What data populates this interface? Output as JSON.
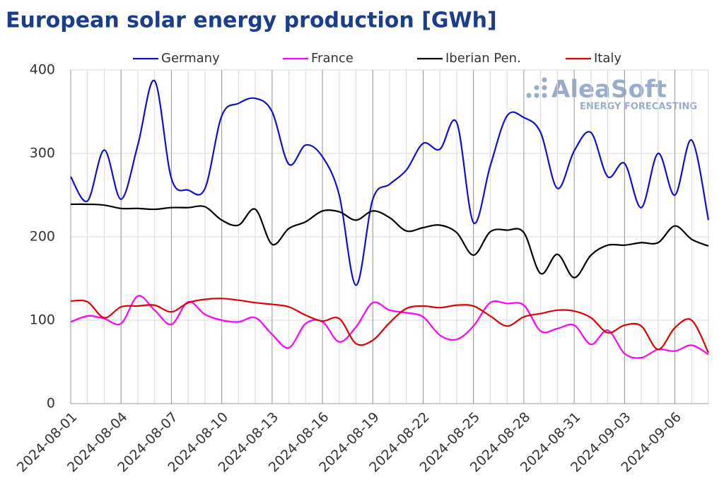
{
  "chart_data": {
    "type": "line",
    "title": "European solar energy production [GWh]",
    "watermark": "AleaSoft",
    "watermark_sub": "ENERGY FORECASTING",
    "x": [
      "2024-08-01",
      "2024-08-02",
      "2024-08-03",
      "2024-08-04",
      "2024-08-05",
      "2024-08-06",
      "2024-08-07",
      "2024-08-08",
      "2024-08-09",
      "2024-08-10",
      "2024-08-11",
      "2024-08-12",
      "2024-08-13",
      "2024-08-14",
      "2024-08-15",
      "2024-08-16",
      "2024-08-17",
      "2024-08-18",
      "2024-08-19",
      "2024-08-20",
      "2024-08-21",
      "2024-08-22",
      "2024-08-23",
      "2024-08-24",
      "2024-08-25",
      "2024-08-26",
      "2024-08-27",
      "2024-08-28",
      "2024-08-29",
      "2024-08-30",
      "2024-08-31",
      "2024-09-01",
      "2024-09-02",
      "2024-09-03",
      "2024-09-04",
      "2024-09-05",
      "2024-09-06",
      "2024-09-07",
      "2024-09-08"
    ],
    "xticks": [
      "2024-08-01",
      "2024-08-04",
      "2024-08-07",
      "2024-08-10",
      "2024-08-13",
      "2024-08-16",
      "2024-08-19",
      "2024-08-22",
      "2024-08-25",
      "2024-08-28",
      "2024-08-31",
      "2024-09-03",
      "2024-09-06"
    ],
    "ylim": [
      0,
      400
    ],
    "yticks": [
      0,
      100,
      200,
      300,
      400
    ],
    "grid": true,
    "legend": "top",
    "smooth": true,
    "series": [
      {
        "name": "Germany",
        "color": "#1010d0",
        "values": [
          272,
          243,
          304,
          245,
          310,
          387,
          270,
          256,
          258,
          345,
          360,
          366,
          350,
          287,
          310,
          296,
          250,
          142,
          245,
          263,
          280,
          312,
          305,
          337,
          217,
          285,
          345,
          343,
          325,
          258,
          303,
          325,
          272,
          288,
          235,
          300,
          250,
          316,
          220
        ]
      },
      {
        "name": "France",
        "color": "#ff00ff",
        "values": [
          98,
          105,
          102,
          96,
          129,
          112,
          95,
          122,
          107,
          100,
          98,
          103,
          83,
          67,
          96,
          98,
          74,
          92,
          121,
          112,
          109,
          104,
          82,
          77,
          93,
          121,
          120,
          118,
          87,
          90,
          94,
          71,
          88,
          60,
          55,
          65,
          63,
          70,
          59
        ]
      },
      {
        "name": "Iberian Pen.",
        "color": "#000000",
        "values": [
          239,
          239,
          238,
          234,
          234,
          233,
          235,
          235,
          236,
          220,
          214,
          233,
          191,
          210,
          218,
          231,
          230,
          220,
          231,
          223,
          207,
          211,
          214,
          205,
          178,
          206,
          208,
          205,
          156,
          179,
          151,
          178,
          190,
          190,
          193,
          193,
          213,
          197,
          189
        ]
      },
      {
        "name": "Italy",
        "color": "#e00000",
        "values": [
          123,
          122,
          103,
          116,
          117,
          118,
          110,
          121,
          125,
          126,
          124,
          121,
          119,
          116,
          106,
          99,
          102,
          72,
          76,
          97,
          114,
          117,
          115,
          118,
          117,
          105,
          93,
          104,
          108,
          112,
          111,
          103,
          85,
          94,
          93,
          65,
          91,
          100,
          61
        ]
      }
    ]
  }
}
